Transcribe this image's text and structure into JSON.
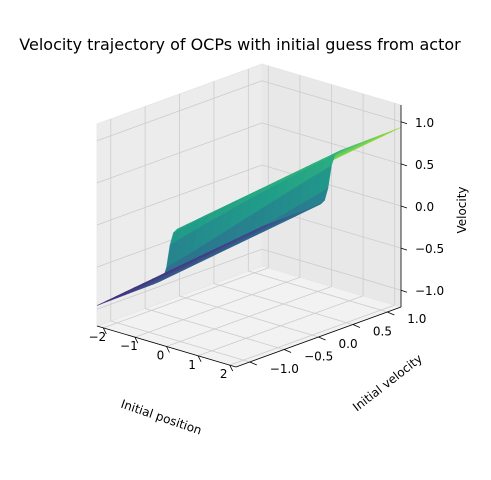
{
  "chart_data": {
    "type": "surface3d",
    "title": "Velocity trajectory of OCPs with initial guess from actor",
    "xlabel": "Initial position",
    "ylabel": "Initial velocity",
    "zlabel": "Velocity",
    "x_ticks": [
      "−2",
      "−1",
      "0",
      "1",
      "2"
    ],
    "y_ticks": [
      "−1.0",
      "−0.5",
      "0.0",
      "0.5",
      "1.0"
    ],
    "z_ticks": [
      "−1.0",
      "−0.5",
      "0.0",
      "0.5",
      "1.0"
    ],
    "x_range": [
      -2.2,
      2.2
    ],
    "y_range": [
      -1.2,
      1.2
    ],
    "z_range": [
      -1.2,
      1.2
    ],
    "colormap": "viridis",
    "surface_description_note": "",
    "corner_values": {
      "x_min_y_min": -1.02,
      "x_min_y_max": -1.05,
      "x_max_y_min": 1.0,
      "x_max_y_max": 0.98
    },
    "grid": true
  }
}
